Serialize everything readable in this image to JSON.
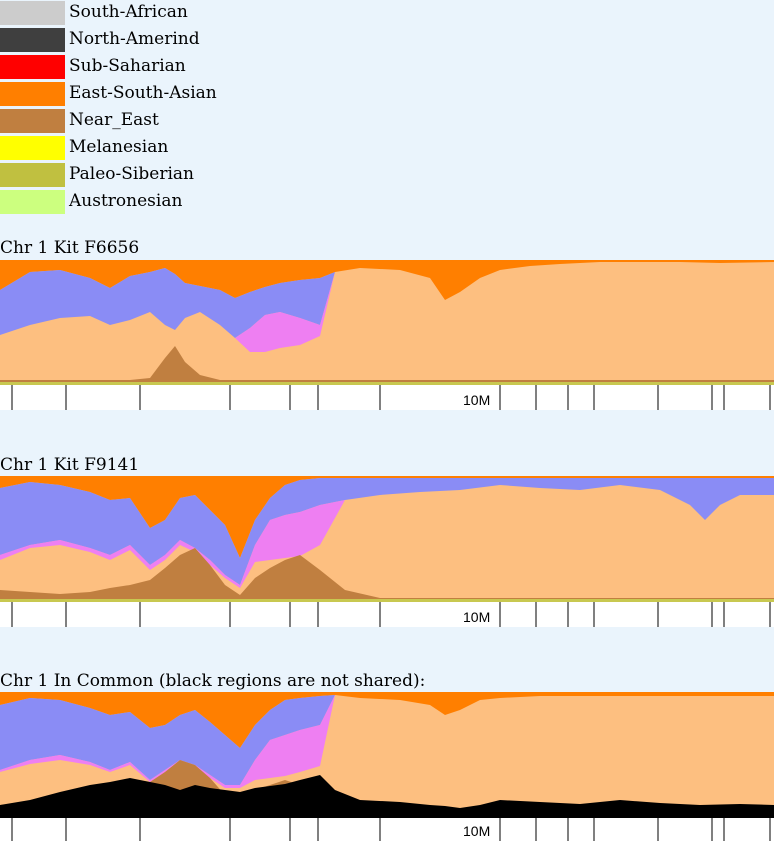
{
  "legend": [
    {
      "label": "South-African",
      "color": "#cccccc"
    },
    {
      "label": "North-Amerind",
      "color": "#3f3f3f"
    },
    {
      "label": "Sub-Saharian",
      "color": "#ff0000"
    },
    {
      "label": "East-South-Asian",
      "color": "#ff7f00"
    },
    {
      "label": "Near_East",
      "color": "#c07f40"
    },
    {
      "label": "Melanesian",
      "color": "#ffff00"
    },
    {
      "label": "Paleo-Siberian",
      "color": "#c0c040"
    },
    {
      "label": "Austronesian",
      "color": "#ccff7f"
    }
  ],
  "other_colors": {
    "peach": "#fdbf80",
    "periwinkle": "#8a8cf5",
    "violet": "#ee7ff2",
    "olive_green": "#c8c850",
    "not_shared": "#000000",
    "axis_band": "#ffffff",
    "page_bg": "#eaf4fc"
  },
  "chart_data": [
    {
      "type": "area",
      "title": "Chr 1 Kit F6656",
      "tick_label": "10M",
      "profile": {
        "x": [
          0,
          30,
          60,
          90,
          110,
          130,
          150,
          165,
          175,
          185,
          200,
          220,
          235,
          250,
          265,
          280,
          300,
          320,
          335,
          360,
          400,
          430,
          445,
          460,
          480,
          500,
          530,
          560,
          600,
          640,
          680,
          720,
          774
        ],
        "orange_bottom": [
          290,
          272,
          270,
          278,
          288,
          276,
          272,
          268,
          274,
          283,
          286,
          290,
          298,
          292,
          287,
          283,
          280,
          278,
          272,
          268,
          270,
          278,
          300,
          292,
          278,
          270,
          266,
          264,
          262,
          262,
          262,
          263,
          262
        ],
        "blue_bottom": [
          335,
          325,
          318,
          316,
          325,
          320,
          312,
          325,
          330,
          318,
          312,
          325,
          338,
          328,
          315,
          312,
          318,
          325,
          272,
          268,
          270,
          278,
          300,
          292,
          278,
          270,
          266,
          264,
          262,
          262,
          262,
          263,
          262
        ],
        "violet_bottom": [
          335,
          325,
          318,
          316,
          325,
          320,
          312,
          325,
          330,
          318,
          312,
          325,
          338,
          352,
          352,
          348,
          345,
          336,
          272,
          268,
          270,
          278,
          300,
          292,
          278,
          270,
          266,
          264,
          262,
          262,
          262,
          263,
          262
        ],
        "near_east_top": [
          380,
          380,
          380,
          380,
          380,
          380,
          378,
          358,
          346,
          362,
          375,
          380,
          380,
          380,
          380,
          380,
          380,
          380,
          380,
          380,
          380,
          380,
          380,
          380,
          380,
          380,
          380,
          380,
          380,
          380,
          380,
          380,
          380
        ]
      }
    },
    {
      "type": "area",
      "title": "Chr 1 Kit F9141",
      "tick_label": "10M",
      "profile": {
        "x": [
          0,
          30,
          60,
          90,
          110,
          130,
          150,
          165,
          180,
          195,
          210,
          225,
          240,
          255,
          270,
          285,
          300,
          320,
          345,
          380,
          420,
          460,
          500,
          540,
          580,
          620,
          660,
          690,
          705,
          720,
          740,
          774
        ],
        "orange_bottom": [
          488,
          482,
          485,
          492,
          500,
          498,
          528,
          520,
          498,
          495,
          510,
          525,
          558,
          520,
          498,
          485,
          480,
          478,
          478,
          478,
          478,
          478,
          478,
          478,
          478,
          478,
          478,
          478,
          478,
          478,
          478,
          478
        ],
        "blue_bottom": [
          555,
          545,
          540,
          548,
          555,
          545,
          565,
          555,
          540,
          548,
          560,
          575,
          585,
          545,
          520,
          515,
          512,
          505,
          500,
          495,
          492,
          490,
          485,
          488,
          490,
          485,
          490,
          505,
          520,
          505,
          495,
          495
        ],
        "violet_bottom": [
          560,
          548,
          545,
          552,
          560,
          550,
          570,
          560,
          545,
          552,
          565,
          578,
          588,
          562,
          560,
          558,
          556,
          545,
          500,
          495,
          492,
          490,
          485,
          488,
          490,
          485,
          490,
          505,
          520,
          505,
          495,
          495
        ],
        "near_east_top": [
          590,
          592,
          594,
          592,
          588,
          585,
          580,
          568,
          555,
          548,
          565,
          585,
          595,
          578,
          568,
          560,
          555,
          570,
          590,
          598,
          598,
          598,
          598,
          598,
          598,
          598,
          598,
          598,
          598,
          598,
          598,
          598
        ]
      }
    },
    {
      "type": "area",
      "title": "Chr 1 In Common (black regions are not shared):",
      "tick_label": "10M",
      "profile": {
        "x": [
          0,
          30,
          60,
          90,
          110,
          130,
          150,
          165,
          180,
          195,
          210,
          225,
          240,
          255,
          270,
          285,
          300,
          320,
          335,
          360,
          400,
          430,
          445,
          460,
          480,
          500,
          540,
          580,
          620,
          660,
          700,
          740,
          774
        ],
        "orange_bottom": [
          705,
          698,
          700,
          708,
          715,
          712,
          728,
          725,
          715,
          710,
          722,
          735,
          748,
          725,
          710,
          700,
          698,
          696,
          695,
          698,
          700,
          705,
          715,
          710,
          700,
          698,
          696,
          696,
          696,
          696,
          696,
          696,
          696
        ],
        "blue_bottom": [
          770,
          760,
          755,
          762,
          770,
          762,
          780,
          770,
          760,
          765,
          775,
          785,
          785,
          760,
          740,
          735,
          730,
          725,
          695,
          698,
          700,
          705,
          715,
          710,
          700,
          698,
          696,
          696,
          696,
          696,
          696,
          696,
          696
        ],
        "violet_bottom": [
          772,
          764,
          760,
          765,
          772,
          765,
          782,
          772,
          762,
          768,
          778,
          788,
          788,
          780,
          778,
          776,
          772,
          766,
          695,
          698,
          700,
          705,
          715,
          710,
          700,
          698,
          696,
          696,
          696,
          696,
          696,
          696,
          696
        ],
        "near_east_top": [
          805,
          802,
          800,
          798,
          795,
          792,
          782,
          772,
          760,
          765,
          778,
          795,
          800,
          790,
          785,
          780,
          785,
          795,
          805,
          810,
          810,
          810,
          810,
          810,
          810,
          810,
          810,
          810,
          810,
          810,
          810,
          810,
          810
        ],
        "black_top": [
          805,
          800,
          792,
          785,
          782,
          778,
          782,
          785,
          790,
          785,
          788,
          790,
          792,
          788,
          786,
          784,
          780,
          775,
          790,
          800,
          802,
          805,
          806,
          808,
          805,
          800,
          802,
          804,
          800,
          803,
          805,
          804,
          805
        ]
      }
    }
  ]
}
